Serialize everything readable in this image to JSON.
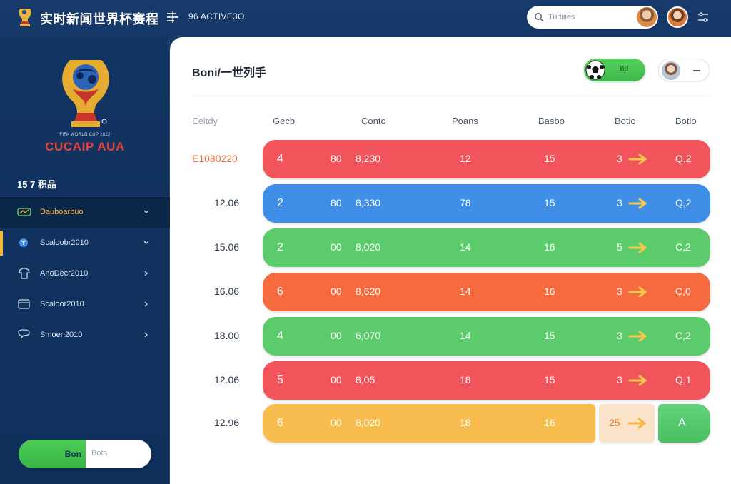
{
  "header": {
    "app_title": "实时新闻世界杯赛程",
    "subtitle": "96 ACTIVE3O",
    "search_placeholder": "Tudiiies"
  },
  "sidebar": {
    "brand_tagline": "FIFA WORLD CUP 2022",
    "brand_name": "CUCAIP AUA",
    "section_label": "15 7 积品",
    "items": [
      {
        "label": "Dauboarbuo"
      },
      {
        "label": "Scaloobr2010"
      },
      {
        "label": "AnoDecr2010"
      },
      {
        "label": "Scaloor2010"
      },
      {
        "label": "Smoen2010"
      }
    ],
    "toggle_on_label": "Bon",
    "toggle_off_label": "Bots"
  },
  "main": {
    "title": "Boni/一世列手",
    "ball_toggle_label": "Bd",
    "columns": [
      "Eeitdy",
      "Gecb",
      "Conto",
      "Poans",
      "Basbo",
      "Botio",
      "Botio"
    ],
    "rows": [
      {
        "date": "E1080220",
        "c1": "4",
        "c2": "80",
        "c3": "8,230",
        "c4": "12",
        "c5": "15",
        "c6": "3",
        "c7": "Q,2",
        "color": "#f2545b"
      },
      {
        "date": "12.06",
        "c1": "2",
        "c2": "80",
        "c3": "8,330",
        "c4": "78",
        "c5": "15",
        "c6": "3",
        "c7": "Q,2",
        "color": "#3f8fe8"
      },
      {
        "date": "15.06",
        "c1": "2",
        "c2": "00",
        "c3": "8,020",
        "c4": "14",
        "c5": "16",
        "c6": "5",
        "c7": "C,2",
        "color": "#5ccb6b"
      },
      {
        "date": "16.06",
        "c1": "6",
        "c2": "00",
        "c3": "8,620",
        "c4": "14",
        "c5": "16",
        "c6": "3",
        "c7": "C,0",
        "color": "#f56a3f"
      },
      {
        "date": "18.00",
        "c1": "4",
        "c2": "00",
        "c3": "6,070",
        "c4": "14",
        "c5": "15",
        "c6": "3",
        "c7": "C,2",
        "color": "#5ccb6b"
      },
      {
        "date": "12.06",
        "c1": "5",
        "c2": "00",
        "c3": "8,05",
        "c4": "18",
        "c5": "15",
        "c6": "3",
        "c7": "Q,1",
        "color": "#f2545b"
      }
    ],
    "last_row": {
      "date": "12.96",
      "c1": "6",
      "c2": "00",
      "c3": "8,020",
      "c4": "18",
      "c5": "16",
      "extra1": "25",
      "extra2": "A",
      "color": "#f8bd4f"
    }
  },
  "colors": {
    "background_navy": "#10305c",
    "accent_gold": "#f3b63a",
    "green": "#4ccd55",
    "red": "#f2545b",
    "blue": "#3f8fe8",
    "orange": "#f56a3f",
    "yellow": "#f8bd4f"
  },
  "icons": {
    "top_logo": "trophy-icon",
    "menu": "menu-icon",
    "search": "search-icon",
    "settings": "settings-icon",
    "ball": "soccer-ball-icon",
    "arrow": "arrow-right-icon",
    "chevron": "chevron-down-icon"
  }
}
